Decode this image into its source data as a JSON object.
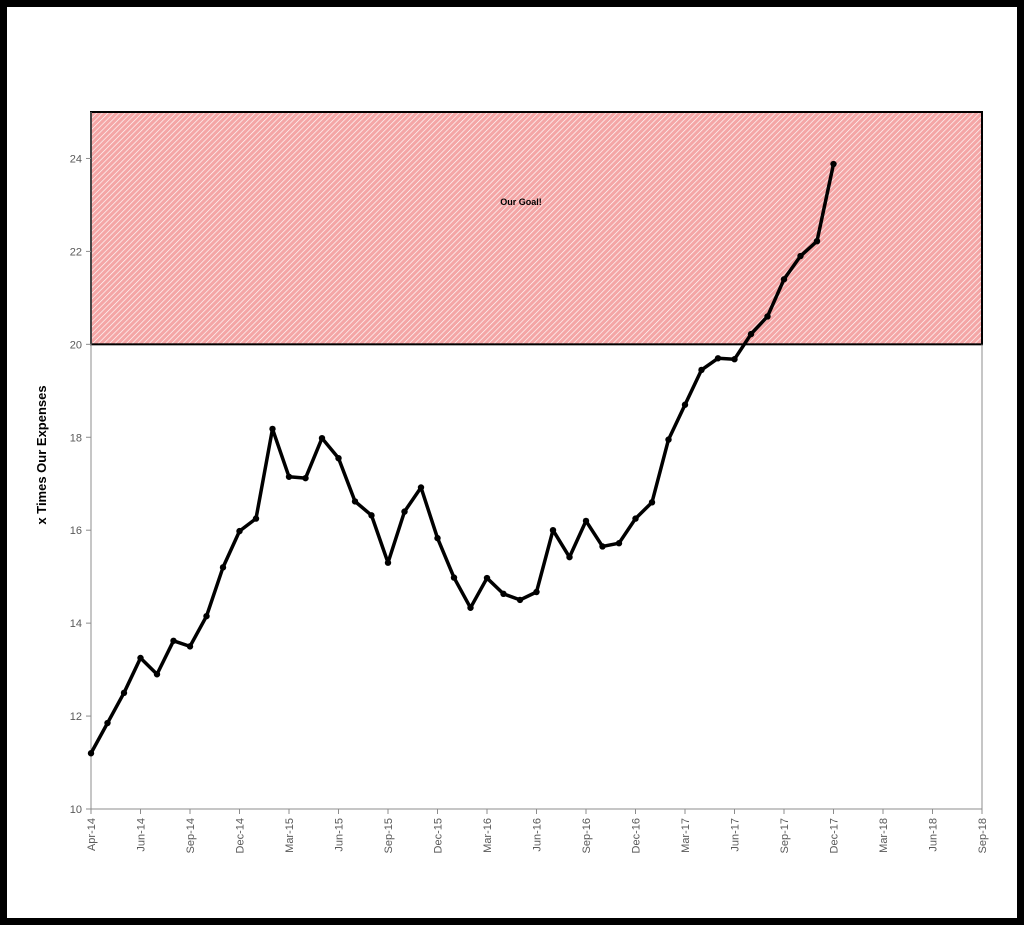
{
  "chart_data": {
    "type": "line",
    "title": "",
    "xlabel": "",
    "ylabel": "x Times Our Expenses",
    "ylim": [
      10,
      25
    ],
    "yticks": [
      10,
      12,
      14,
      16,
      18,
      20,
      22,
      24
    ],
    "x_tick_labels": [
      "Apr-14",
      "Jun-14",
      "Sep-14",
      "Dec-14",
      "Mar-15",
      "Jun-15",
      "Sep-15",
      "Dec-15",
      "Mar-16",
      "Jun-16",
      "Sep-16",
      "Dec-16",
      "Mar-17",
      "Jun-17",
      "Sep-17",
      "Dec-17",
      "Mar-18",
      "Jun-18",
      "Sep-18"
    ],
    "goal_band": {
      "label": "Our Goal!",
      "from": 20,
      "to": 25,
      "color": "#f4a6a6"
    },
    "line_color": "#000000",
    "grid": false,
    "series": [
      {
        "values": [
          11.2,
          11.85,
          12.5,
          13.25,
          12.9,
          13.62,
          13.5,
          14.15,
          15.2,
          15.98,
          16.25,
          18.18,
          17.15,
          17.12,
          17.98,
          17.55,
          16.62,
          16.32,
          15.3,
          16.4,
          16.92,
          15.83,
          14.98,
          14.33,
          14.97,
          14.63,
          14.5,
          14.67,
          16.0,
          15.42,
          16.2,
          15.65,
          15.72,
          16.25,
          16.6,
          17.95,
          18.7,
          19.45,
          19.7,
          19.68,
          20.22,
          20.6,
          21.4,
          21.9,
          22.22,
          23.88
        ]
      }
    ]
  }
}
